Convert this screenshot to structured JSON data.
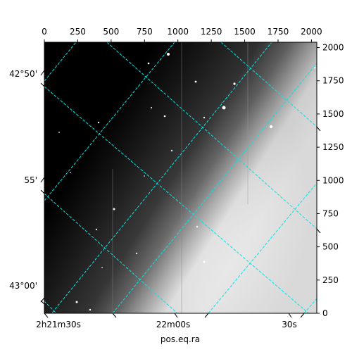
{
  "chart_data": {
    "type": "image",
    "title": "",
    "xlabel": "pos.eq.ra",
    "ylabel": "",
    "pixel_axes": {
      "top_ticks": [
        0,
        250,
        500,
        750,
        1000,
        1250,
        1500,
        1750,
        2000
      ],
      "right_ticks": [
        0,
        250,
        500,
        750,
        1000,
        1250,
        1500,
        1750,
        2000
      ],
      "xlim": [
        0,
        2040
      ],
      "ylim": [
        0,
        2040
      ]
    },
    "world_axes": {
      "bottom_ticks": [
        {
          "label": "2h21m30s",
          "ra_h": 2,
          "ra_m": 21,
          "ra_s": 30
        },
        {
          "label": "22m00s",
          "ra_h": 2,
          "ra_m": 22,
          "ra_s": 0
        },
        {
          "label": "30s",
          "ra_h": 2,
          "ra_m": 22,
          "ra_s": 30
        }
      ],
      "left_ticks": [
        {
          "label": "42°50'",
          "dec_deg": 42,
          "dec_min": 50
        },
        {
          "label": "55'",
          "dec_deg": 42,
          "dec_min": 55
        },
        {
          "label": "43°00'",
          "dec_deg": 43,
          "dec_min": 0
        }
      ]
    },
    "grid": true,
    "grid_color": "#00e5e5",
    "image_colormap": "gray"
  }
}
